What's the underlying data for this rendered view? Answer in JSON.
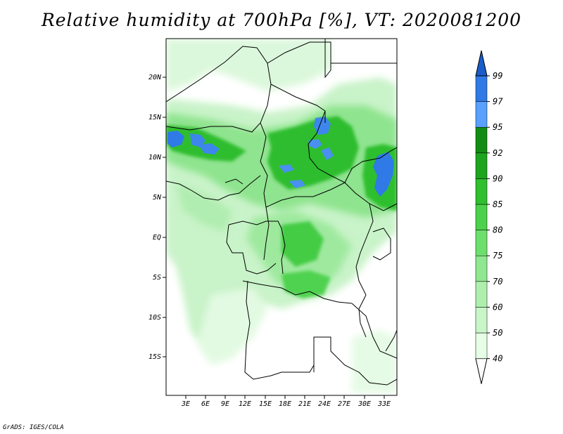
{
  "title": "Relative humidity at 700hPa [%], VT: 2020081200",
  "credit": "GrADS: IGES/COLA",
  "latitude_labels": [
    "20N",
    "15N",
    "10N",
    "5N",
    "EQ",
    "5S",
    "10S",
    "15S"
  ],
  "longitude_labels": [
    "3E",
    "6E",
    "9E",
    "12E",
    "15E",
    "18E",
    "21E",
    "24E",
    "27E",
    "30E",
    "33E"
  ],
  "colorbar": {
    "labels": [
      "40",
      "50",
      "60",
      "70",
      "75",
      "80",
      "85",
      "90",
      "92",
      "95",
      "97",
      "99"
    ],
    "colors": [
      "#ffffff",
      "#e6fde6",
      "#c8f6c8",
      "#aeefae",
      "#8fe78f",
      "#6ddf6d",
      "#4cd14c",
      "#2fbf2f",
      "#1ea51e",
      "#138c13",
      "#5aa0ff",
      "#2f7ae6",
      "#1a5cc9"
    ]
  }
}
